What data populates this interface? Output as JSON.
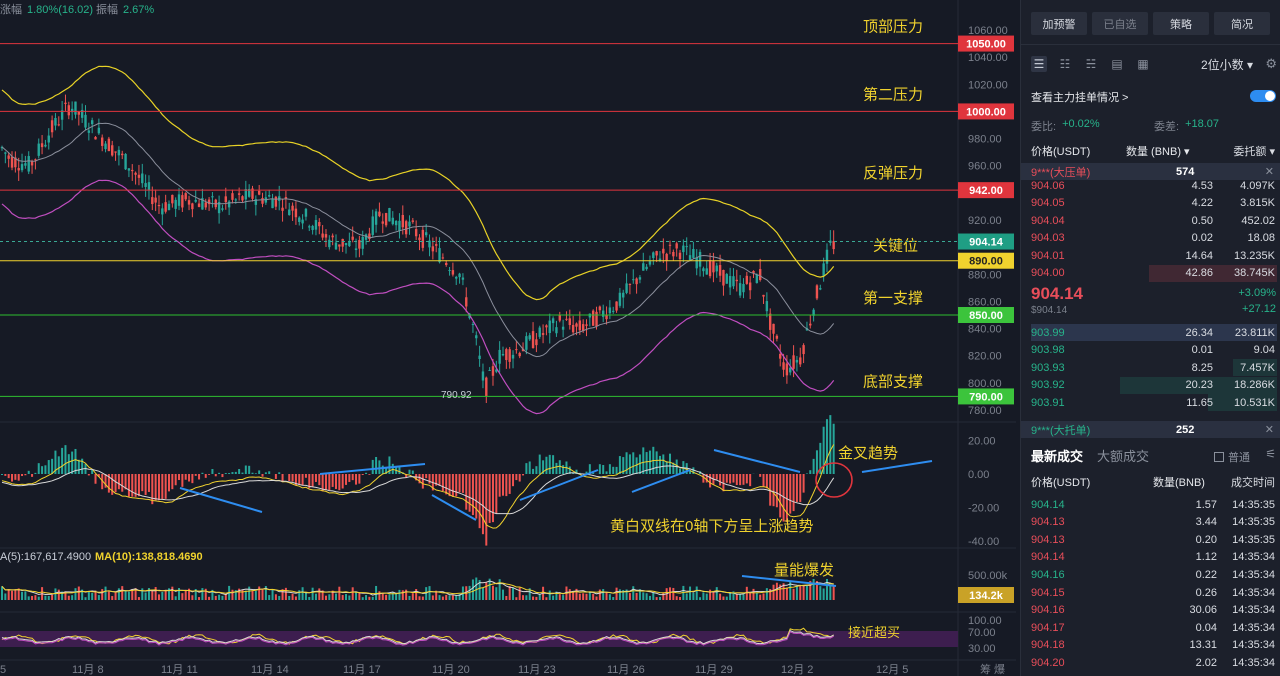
{
  "header": {
    "change_label": "涨幅",
    "change_value": "1.80%(16.02)",
    "amplitude_label": "振幅",
    "amplitude_value": "2.67%"
  },
  "price_levels": [
    {
      "label": "顶部压力",
      "price": "1050.00",
      "value": 1050,
      "color": "#e0353d"
    },
    {
      "label": "第二压力",
      "price": "1000.00",
      "value": 1000,
      "color": "#e0353d"
    },
    {
      "label": "反弹压力",
      "price": "942.00",
      "value": 942,
      "color": "#e0353d"
    },
    {
      "label": "关键位",
      "price": "890.00",
      "value": 890,
      "color": "#f0d22e"
    },
    {
      "label": "第一支撑",
      "price": "850.00",
      "value": 850,
      "color": "#2fbf2f"
    },
    {
      "label": "底部支撑",
      "price": "790.00",
      "value": 790,
      "color": "#2fbf2f"
    }
  ],
  "current_price_tag": "904.14",
  "low_marker": "790.92",
  "price_axis_ticks": [
    "1060.00",
    "1040.00",
    "1020.00",
    "980.00",
    "960.00",
    "920.00",
    "880.00",
    "860.00",
    "840.00",
    "820.00",
    "800.00",
    "780.00"
  ],
  "macd_axis_ticks": [
    "20.00",
    "0.00",
    "-20.00",
    "-40.00"
  ],
  "volume_axis_ticks": [
    "500.00k"
  ],
  "volume_tag": "134.2k",
  "rsi_axis_ticks": [
    "100.00",
    "70.00",
    "30.00"
  ],
  "date_labels": [
    "5",
    "11月 8",
    "11月 11",
    "11月 14",
    "11月 17",
    "11月 20",
    "11月 23",
    "11月 26",
    "11月 29",
    "12月 2",
    "12月 5"
  ],
  "annotations": {
    "golden_cross": "金叉趋势",
    "macd_note": "黄白双线在0轴下方呈上涨趋势",
    "volume_burst": "量能爆发",
    "overbought": "接近超买"
  },
  "volume_legend": {
    "ma5": "A(5):167,617.4900",
    "ma10": "MA(10):138,818.4690"
  },
  "bottom_right_text": "筹 爆",
  "chart_data": {
    "type": "line",
    "title": "",
    "ylim": [
      780,
      1065
    ],
    "key_price_levels": [
      1050,
      1000,
      942,
      890,
      850,
      790
    ],
    "last_price": 904.14,
    "low": 790.92,
    "x_labels": [
      "11月 8",
      "11月 11",
      "11月 14",
      "11月 17",
      "11月 20",
      "11月 23",
      "11月 26",
      "11月 29",
      "12月 2",
      "12月 5"
    ]
  },
  "panel": {
    "buttons": [
      "加预警",
      "已自选",
      "策略",
      "简况"
    ],
    "decimals": "2位小数 ▾",
    "main_orders_label": "查看主力挂单情况 >",
    "ratio_label": "委比:",
    "ratio_value": "+0.02%",
    "diff_label": "委差:",
    "diff_value": "+18.07",
    "col_price": "价格(USDT)",
    "col_qty": "数量 (BNB) ▾",
    "col_amount": "委托额 ▾",
    "big_ask": {
      "label": "9***(大压单)",
      "qty": "574"
    },
    "asks": [
      {
        "price": "904.06",
        "qty": "4.53",
        "amount": "4.097K"
      },
      {
        "price": "904.05",
        "qty": "4.22",
        "amount": "3.815K"
      },
      {
        "price": "904.04",
        "qty": "0.50",
        "amount": "452.02"
      },
      {
        "price": "904.03",
        "qty": "0.02",
        "amount": "18.08"
      },
      {
        "price": "904.01",
        "qty": "14.64",
        "amount": "13.235K"
      },
      {
        "price": "904.00",
        "qty": "42.86",
        "amount": "38.745K"
      }
    ],
    "mid_price": "904.14",
    "mid_usd": "$904.14",
    "mid_change_pct": "+3.09%",
    "mid_change": "+27.12",
    "bids": [
      {
        "price": "903.99",
        "qty": "26.34",
        "amount": "23.811K"
      },
      {
        "price": "903.98",
        "qty": "0.01",
        "amount": "9.04"
      },
      {
        "price": "903.93",
        "qty": "8.25",
        "amount": "7.457K"
      },
      {
        "price": "903.92",
        "qty": "20.23",
        "amount": "18.286K"
      },
      {
        "price": "903.91",
        "qty": "11.65",
        "amount": "10.531K"
      }
    ],
    "big_bid": {
      "label": "9***(大托单)",
      "qty": "252"
    },
    "tab_latest": "最新成交",
    "tab_large": "大额成交",
    "normal_label": "普通",
    "trade_col_price": "价格(USDT)",
    "trade_col_qty": "数量(BNB)",
    "trade_col_time": "成交时间",
    "trades": [
      {
        "price": "904.14",
        "qty": "1.57",
        "time": "14:35:35",
        "side": "buy"
      },
      {
        "price": "904.13",
        "qty": "3.44",
        "time": "14:35:35",
        "side": "sell"
      },
      {
        "price": "904.13",
        "qty": "0.20",
        "time": "14:35:35",
        "side": "sell"
      },
      {
        "price": "904.14",
        "qty": "1.12",
        "time": "14:35:34",
        "side": "sell"
      },
      {
        "price": "904.16",
        "qty": "0.22",
        "time": "14:35:34",
        "side": "buy"
      },
      {
        "price": "904.15",
        "qty": "0.26",
        "time": "14:35:34",
        "side": "sell"
      },
      {
        "price": "904.16",
        "qty": "30.06",
        "time": "14:35:34",
        "side": "sell"
      },
      {
        "price": "904.17",
        "qty": "0.04",
        "time": "14:35:34",
        "side": "sell"
      },
      {
        "price": "904.18",
        "qty": "13.31",
        "time": "14:35:34",
        "side": "sell"
      },
      {
        "price": "904.20",
        "qty": "2.02",
        "time": "14:35:34",
        "side": "sell"
      }
    ]
  }
}
